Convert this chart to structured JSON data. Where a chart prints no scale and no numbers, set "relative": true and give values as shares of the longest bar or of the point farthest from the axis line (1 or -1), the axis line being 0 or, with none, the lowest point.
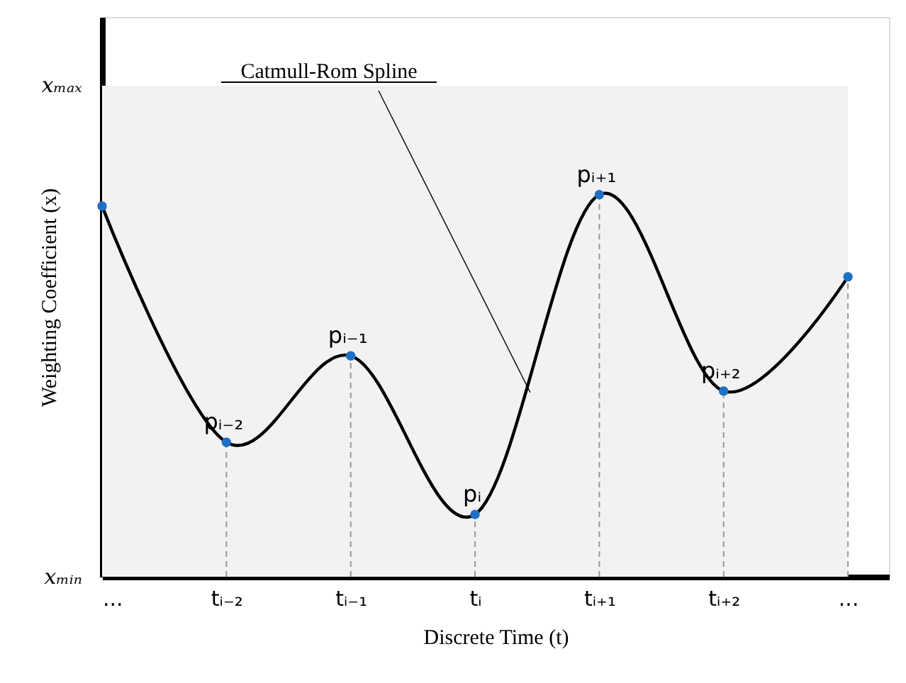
{
  "chart_data": {
    "type": "line",
    "xlabel": "Discrete Time (t)",
    "ylabel": "Weighting Coefficient (x)",
    "relative": true,
    "categories": [
      "...",
      "tᵢ₋₂",
      "tᵢ₋₁",
      "tᵢ",
      "tᵢ₊₁",
      "tᵢ₊₂",
      "..."
    ],
    "series": [
      {
        "color": "#000000",
        "colors": [
          "#1f6fc5",
          "#1f6fc5",
          "#1f6fc5",
          "#1f6fc5",
          "#1f6fc5",
          "#1f6fc5",
          "#1f6fc5"
        ],
        "values": [
          0.97,
          0.352,
          0.578,
          0.163,
          1,
          0.486,
          0.785
        ]
      }
    ],
    "bands": [
      {
        "axis": "y",
        "from": 0,
        "to": 1.285,
        "color": "#f2f2f2"
      }
    ],
    "marker": "circle",
    "line_style": "solid",
    "grid": "x",
    "annotations": [
      "Catmull-Rom Spline",
      {
        "text": "pᵢ₋₂",
        "x": "tᵢ₋₂",
        "y": 0.352
      },
      {
        "text": "pᵢ₋₁",
        "x": "tᵢ₋₁",
        "y": 0.578
      },
      {
        "text": "pᵢ",
        "x": "tᵢ",
        "y": 0.163
      },
      {
        "text": "pᵢ₊₁",
        "x": "tᵢ₊₁",
        "y": 1
      },
      {
        "text": "pᵢ₊₂",
        "x": "tᵢ₊₂",
        "y": 0.486
      },
      "xₘᵢₙ",
      "xₘₐₓ"
    ]
  }
}
